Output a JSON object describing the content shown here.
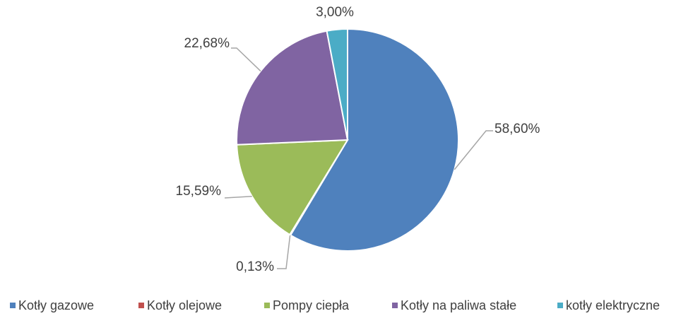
{
  "chart_data": {
    "type": "pie",
    "categories": [
      "Kotły gazowe",
      "Kotły olejowe",
      "Pompy ciepła",
      "Kotły na paliwa stałe",
      "kotły elektryczne"
    ],
    "values": [
      58.6,
      0.13,
      15.59,
      22.68,
      3.0
    ],
    "value_labels": [
      "58,60%",
      "0,13%",
      "15,59%",
      "22,68%",
      "3,00%"
    ],
    "colors": [
      "#4f81bd",
      "#c0504d",
      "#9bbb59",
      "#8064a2",
      "#4bacc6"
    ],
    "legend": "bottom"
  }
}
